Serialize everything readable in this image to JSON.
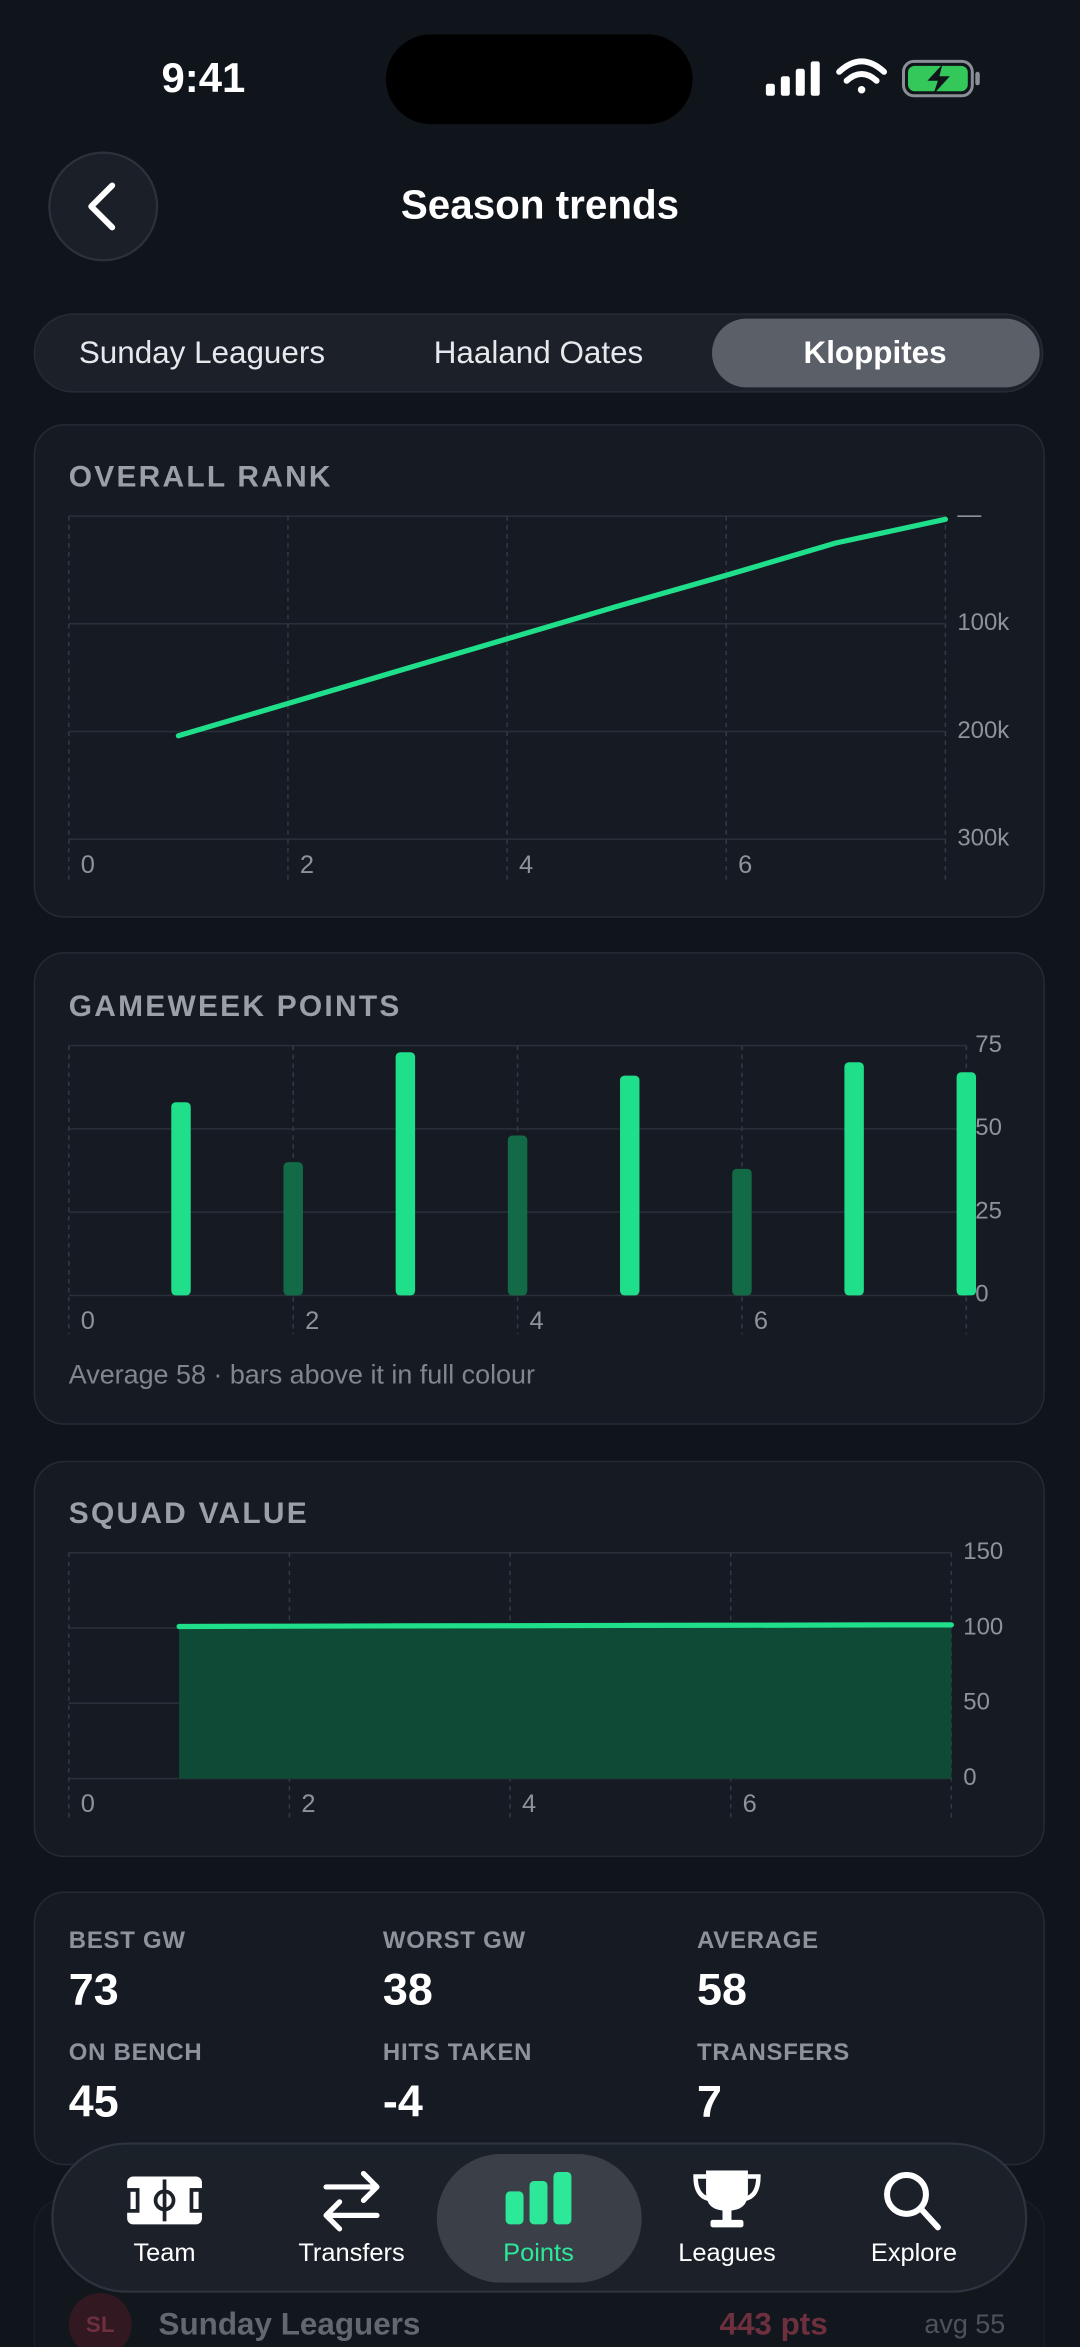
{
  "status_bar": {
    "time": "9:41"
  },
  "header": {
    "title": "Season trends"
  },
  "tabs": {
    "items": [
      "Sunday Leaguers",
      "Haaland Oates",
      "Kloppites"
    ],
    "active": 2
  },
  "chart_data": [
    {
      "type": "line",
      "title": "OVERALL RANK",
      "x": [
        1,
        2,
        3,
        4,
        5,
        6,
        7,
        8
      ],
      "series": [
        {
          "color": "#1fdf8a",
          "values": [
            204000,
            174000,
            144000,
            114000,
            84000,
            55000,
            25000,
            3000
          ]
        }
      ],
      "xlim": [
        0,
        8
      ],
      "xticks": [
        0,
        2,
        4,
        6
      ],
      "ylim": [
        0,
        300000
      ],
      "y_inverted": true,
      "yticks": [
        {
          "value": 0,
          "label": "—"
        },
        {
          "value": 100000,
          "label": "100k"
        },
        {
          "value": 200000,
          "label": "200k"
        },
        {
          "value": 300000,
          "label": "300k"
        }
      ],
      "grid": true
    },
    {
      "type": "bar",
      "title": "GAMEWEEK POINTS",
      "x": [
        1,
        2,
        3,
        4,
        5,
        6,
        7,
        8
      ],
      "values": [
        58,
        40,
        73,
        48,
        66,
        38,
        70,
        67
      ],
      "color": "#1fdf8a",
      "dim_color": "#126b46",
      "average": 58,
      "note": "Average 58 · bars above it in full colour",
      "xlim": [
        0,
        8
      ],
      "xticks": [
        0,
        2,
        4,
        6
      ],
      "ylim": [
        0,
        75
      ],
      "yticks": [
        0,
        25,
        50,
        75
      ],
      "grid": true
    },
    {
      "type": "area",
      "title": "SQUAD VALUE",
      "x": [
        1,
        2,
        3,
        4,
        5,
        6,
        7,
        8
      ],
      "values": [
        101.0,
        101.2,
        101.4,
        101.5,
        101.7,
        101.8,
        102.0,
        102.1
      ],
      "color": "#1fdf8a",
      "fill_color": "#0f4a36",
      "xlim": [
        0,
        8
      ],
      "xticks": [
        0,
        2,
        4,
        6
      ],
      "ylim": [
        0,
        150
      ],
      "yticks": [
        0,
        50,
        100,
        150
      ],
      "grid": true
    }
  ],
  "stats": [
    {
      "label": "BEST GW",
      "value": 73
    },
    {
      "label": "WORST GW",
      "value": 38
    },
    {
      "label": "AVERAGE",
      "value": 58
    },
    {
      "label": "ON BENCH",
      "value": 45
    },
    {
      "label": "HITS TAKEN",
      "value": -4
    },
    {
      "label": "TRANSFERS",
      "value": 7
    }
  ],
  "league_preview": {
    "badge": "SL",
    "name": "Sunday Leaguers",
    "points": "443 pts",
    "average": "avg 55"
  },
  "nav": {
    "items": [
      "Team",
      "Transfers",
      "Points",
      "Leagues",
      "Explore"
    ],
    "active": 2
  }
}
